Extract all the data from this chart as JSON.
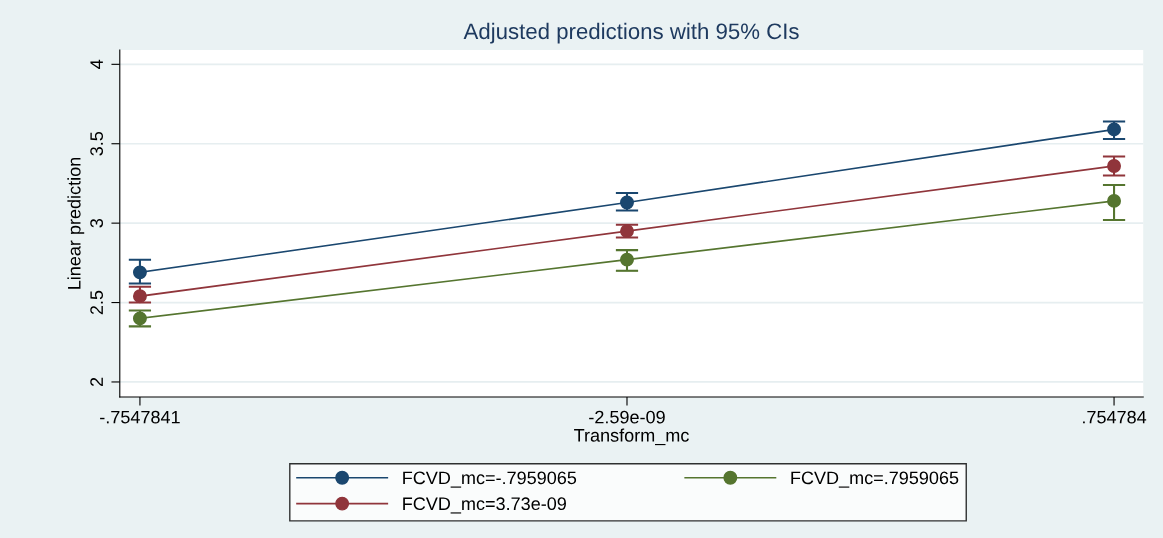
{
  "chart_data": {
    "type": "line",
    "title": "Adjusted predictions with 95% CIs",
    "xlabel": "Transform_mc",
    "ylabel": "Linear prediction",
    "x": [
      -0.7547841,
      -2.59e-09,
      0.754784
    ],
    "series": [
      {
        "name": "FCVD_mc=-.7959065",
        "color": "#1a476f",
        "values": [
          2.69,
          3.13,
          3.59
        ],
        "errors": [
          [
            2.62,
            2.77
          ],
          [
            3.08,
            3.19
          ],
          [
            3.53,
            3.64
          ]
        ]
      },
      {
        "name": "FCVD_mc=3.73e-09",
        "color": "#90353b",
        "values": [
          2.54,
          2.95,
          3.36
        ],
        "errors": [
          [
            2.5,
            2.6
          ],
          [
            2.91,
            2.99
          ],
          [
            3.3,
            3.42
          ]
        ]
      },
      {
        "name": "FCVD_mc=.7959065",
        "color": "#55752f",
        "values": [
          2.4,
          2.77,
          3.14
        ],
        "errors": [
          [
            2.35,
            2.45
          ],
          [
            2.7,
            2.83
          ],
          [
            3.02,
            3.24
          ]
        ]
      }
    ],
    "xlim": [
      -0.786,
      0.8
    ],
    "xticks": [
      {
        "value": -0.7547841,
        "label": "-.7547841"
      },
      {
        "value": -2.59e-09,
        "label": "-2.59e-09"
      },
      {
        "value": 0.754784,
        "label": ".754784"
      }
    ],
    "ylim": [
      1.905,
      4.09
    ],
    "yticks": [
      2,
      2.5,
      3,
      3.5,
      4
    ],
    "grid": "y",
    "legend": "bottom",
    "marker": "circle",
    "line_style": "solid"
  }
}
